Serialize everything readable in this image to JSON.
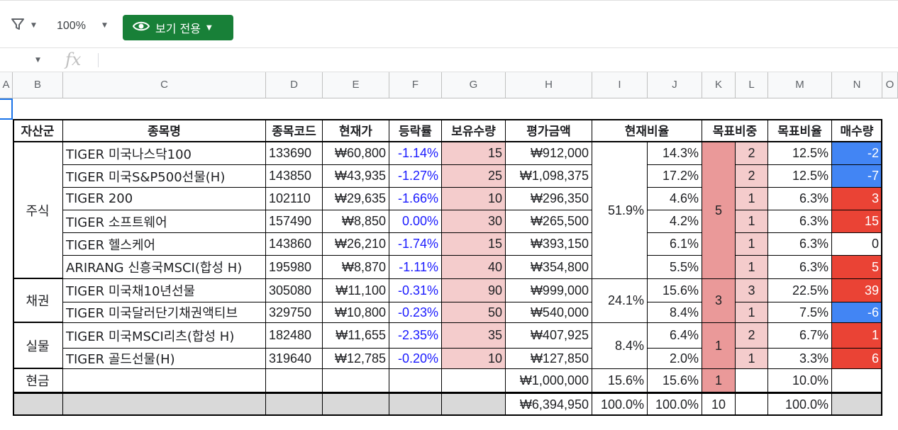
{
  "toolbar": {
    "zoom": "100%",
    "view_mode": "보기 전용"
  },
  "formula_bar": {
    "fx": "fx"
  },
  "columns": [
    "A",
    "B",
    "C",
    "D",
    "E",
    "F",
    "G",
    "H",
    "I",
    "J",
    "K",
    "L",
    "M",
    "N",
    "O"
  ],
  "headers": [
    "자산군",
    "종목명",
    "종목코드",
    "현재가",
    "등락률",
    "보유수량",
    "평가금액",
    "현재비율",
    "목표비중",
    "목표비율",
    "매수량"
  ],
  "groups": [
    {
      "name": "주식",
      "current_ratio": "51.9%",
      "target_weight": "5"
    },
    {
      "name": "채권",
      "current_ratio": "24.1%",
      "target_weight": "3"
    },
    {
      "name": "실물",
      "current_ratio": "8.4%",
      "target_weight": "1"
    }
  ],
  "rows": [
    {
      "name": "TIGER 미국나스닥100",
      "code": "133690",
      "price": "₩60,800",
      "change": "-1.14%",
      "qty": "15",
      "value": "₩912,000",
      "ratio": "14.3%",
      "tw": "2",
      "tr": "12.5%",
      "buy": "-2",
      "buy_style": "neg"
    },
    {
      "name": "TIGER 미국S&P500선물(H)",
      "code": "143850",
      "price": "₩43,935",
      "change": "-1.27%",
      "qty": "25",
      "value": "₩1,098,375",
      "ratio": "17.2%",
      "tw": "2",
      "tr": "12.5%",
      "buy": "-7",
      "buy_style": "neg"
    },
    {
      "name": "TIGER 200",
      "code": "102110",
      "price": "₩29,635",
      "change": "-1.66%",
      "qty": "10",
      "value": "₩296,350",
      "ratio": "4.6%",
      "tw": "1",
      "tr": "6.3%",
      "buy": "3",
      "buy_style": "pos"
    },
    {
      "name": "TIGER 소프트웨어",
      "code": "157490",
      "price": "₩8,850",
      "change": "0.00%",
      "qty": "30",
      "value": "₩265,500",
      "ratio": "4.2%",
      "tw": "1",
      "tr": "6.3%",
      "buy": "15",
      "buy_style": "pos"
    },
    {
      "name": "TIGER 헬스케어",
      "code": "143860",
      "price": "₩26,210",
      "change": "-1.74%",
      "qty": "15",
      "value": "₩393,150",
      "ratio": "6.1%",
      "tw": "1",
      "tr": "6.3%",
      "buy": "0",
      "buy_style": "zero"
    },
    {
      "name": "ARIRANG 신흥국MSCI(합성 H)",
      "code": "195980",
      "price": "₩8,870",
      "change": "-1.11%",
      "qty": "40",
      "value": "₩354,800",
      "ratio": "5.5%",
      "tw": "1",
      "tr": "6.3%",
      "buy": "5",
      "buy_style": "pos"
    },
    {
      "name": "TIGER 미국채10년선물",
      "code": "305080",
      "price": "₩11,100",
      "change": "-0.31%",
      "qty": "90",
      "value": "₩999,000",
      "ratio": "15.6%",
      "tw": "3",
      "tr": "22.5%",
      "buy": "39",
      "buy_style": "pos"
    },
    {
      "name": "TIGER 미국달러단기채권액티브",
      "code": "329750",
      "price": "₩10,800",
      "change": "-0.23%",
      "qty": "50",
      "value": "₩540,000",
      "ratio": "8.4%",
      "tw": "1",
      "tr": "7.5%",
      "buy": "-6",
      "buy_style": "neg"
    },
    {
      "name": "TIGER 미국MSCI리츠(합성 H)",
      "code": "182480",
      "price": "₩11,655",
      "change": "-2.35%",
      "qty": "35",
      "value": "₩407,925",
      "ratio": "6.4%",
      "tw": "2",
      "tr": "6.7%",
      "buy": "1",
      "buy_style": "pos"
    },
    {
      "name": "TIGER 골드선물(H)",
      "code": "319640",
      "price": "₩12,785",
      "change": "-0.20%",
      "qty": "10",
      "value": "₩127,850",
      "ratio": "2.0%",
      "tw": "1",
      "tr": "3.3%",
      "buy": "6",
      "buy_style": "pos"
    }
  ],
  "cash": {
    "label": "현금",
    "value": "₩1,000,000",
    "ratio_i": "15.6%",
    "ratio_j": "15.6%",
    "tw": "1",
    "tr": "10.0%"
  },
  "totals": {
    "value": "₩6,394,950",
    "ratio_i": "100.0%",
    "ratio_j": "100.0%",
    "tw": "10",
    "tr": "100.0%"
  },
  "colors": {
    "positive_buy": "#ea4335",
    "negative_buy": "#4285f4",
    "qty_fill": "#f4cccc",
    "weight_fill": "#ea9999",
    "view_button": "#188038"
  }
}
